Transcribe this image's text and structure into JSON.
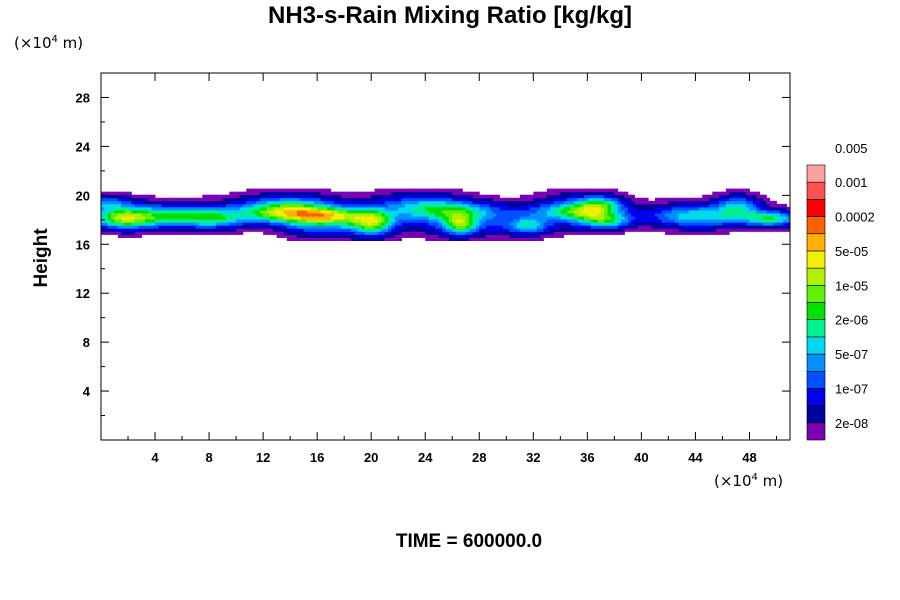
{
  "chart_data": {
    "type": "heatmap",
    "title": "NH3-s-Rain Mixing Ratio [kg/kg]",
    "ylabel": "Height",
    "xlabel": "",
    "x_unit_parts": [
      "(×10",
      "4",
      " m)"
    ],
    "y_unit_parts": [
      "(×10",
      "4",
      " m)"
    ],
    "xlim": [
      0,
      51
    ],
    "ylim": [
      0,
      30
    ],
    "x_ticks": [
      4,
      8,
      12,
      16,
      20,
      24,
      28,
      32,
      36,
      40,
      44,
      48
    ],
    "y_ticks": [
      4,
      8,
      12,
      16,
      20,
      24,
      28
    ],
    "colorbar": {
      "colors": [
        "#7b00b4",
        "#00009c",
        "#0000f0",
        "#0050ff",
        "#0090ff",
        "#00d8f0",
        "#00f090",
        "#00e000",
        "#60f000",
        "#b0f000",
        "#f0f000",
        "#ffb000",
        "#ff6000",
        "#ff0000",
        "#ff5050",
        "#ffa0a0"
      ],
      "labels": [
        "2e-08",
        "1e-07",
        "5e-07",
        "2e-06",
        "1e-05",
        "5e-05",
        "0.0002",
        "0.001",
        "0.005"
      ]
    },
    "footer": "TIME = 600000.0"
  }
}
